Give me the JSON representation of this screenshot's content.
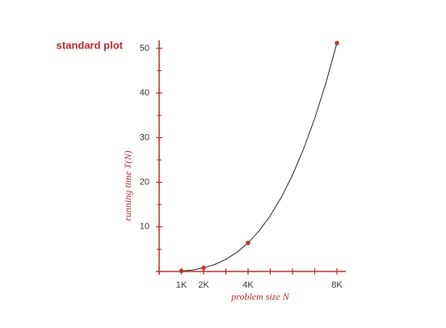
{
  "chart_data": {
    "type": "line",
    "title": "standard plot",
    "xlabel": "problem size N",
    "ylabel": "running time T(N)",
    "xlim": [
      0,
      8400
    ],
    "ylim": [
      0,
      51.8
    ],
    "xticks": [
      {
        "value": 1000,
        "label": "1K"
      },
      {
        "value": 2000,
        "label": "2K"
      },
      {
        "value": 4000,
        "label": "4K"
      },
      {
        "value": 8000,
        "label": "8K"
      }
    ],
    "xminor": [
      3000,
      5000,
      6000,
      7000
    ],
    "yticks": [
      10,
      20,
      30,
      40,
      50
    ],
    "yminor": [
      5,
      15,
      25,
      35,
      45
    ],
    "axis_color": "#b5282a",
    "series": [
      {
        "style": "line",
        "color": "#222222",
        "x": [
          1000,
          1500,
          2000,
          2500,
          3000,
          3500,
          4000,
          4500,
          5000,
          5500,
          6000,
          6500,
          7000,
          7500,
          8000
        ],
        "values": [
          0.1,
          0.34,
          0.8,
          1.56,
          2.7,
          4.29,
          6.4,
          9.11,
          12.5,
          16.64,
          21.6,
          27.46,
          34.3,
          42.19,
          51.2
        ]
      },
      {
        "style": "points",
        "color": "#c0392b",
        "x": [
          1000,
          2000,
          4000,
          8000
        ],
        "values": [
          0.1,
          0.8,
          6.4,
          51.2
        ]
      }
    ]
  }
}
